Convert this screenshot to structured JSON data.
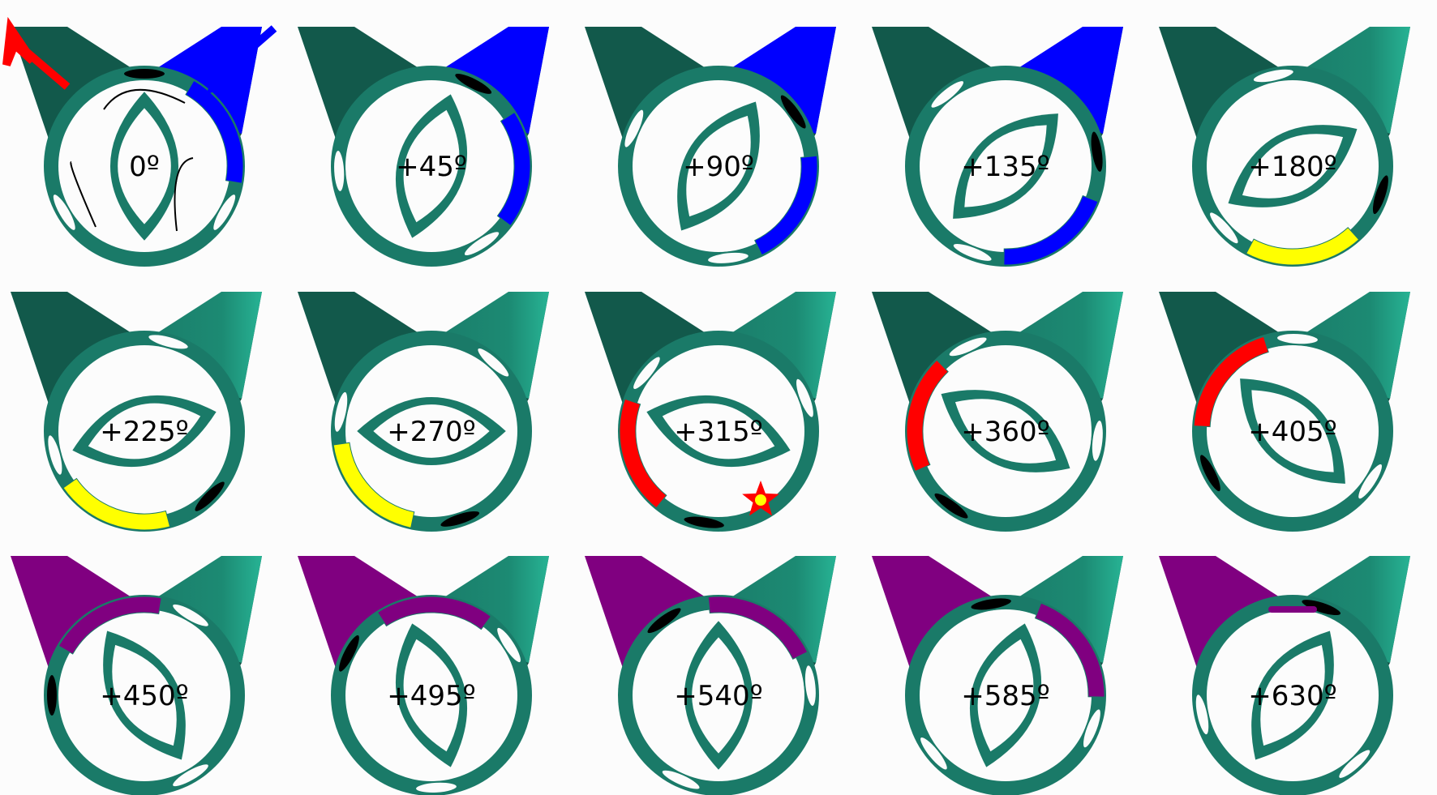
{
  "colors": {
    "housing": "#1a7a68",
    "housing_dark": "#12594b",
    "housing_light": "#27b394",
    "port": "#000000",
    "background": "#fcfcfc",
    "intake": "#0000ff",
    "compression": "#ffff00",
    "combustion": "#ff0000",
    "exhaust": "#800080",
    "spark": "#ffff00"
  },
  "indicators": {
    "exhaust_arrow_color": "#ff0000",
    "intake_arrow_color": "#0000ff",
    "rotation_arrows": "rotation-direction-arrows"
  },
  "steps": [
    {
      "label": "0º",
      "rotation_deg": 0,
      "highlight": "intake"
    },
    {
      "label": "+45º",
      "rotation_deg": 45,
      "highlight": "intake"
    },
    {
      "label": "+90º",
      "rotation_deg": 90,
      "highlight": "intake"
    },
    {
      "label": "+135º",
      "rotation_deg": 135,
      "highlight": "intake"
    },
    {
      "label": "+180º",
      "rotation_deg": 180,
      "highlight": "compression"
    },
    {
      "label": "+225º",
      "rotation_deg": 225,
      "highlight": "compression"
    },
    {
      "label": "+270º",
      "rotation_deg": 270,
      "highlight": "compression"
    },
    {
      "label": "+315º",
      "rotation_deg": 315,
      "highlight": "combustion"
    },
    {
      "label": "+360º",
      "rotation_deg": 360,
      "highlight": "combustion"
    },
    {
      "label": "+405º",
      "rotation_deg": 405,
      "highlight": "combustion"
    },
    {
      "label": "+450º",
      "rotation_deg": 450,
      "highlight": "exhaust"
    },
    {
      "label": "+495º",
      "rotation_deg": 495,
      "highlight": "exhaust"
    },
    {
      "label": "+540º",
      "rotation_deg": 540,
      "highlight": "exhaust"
    },
    {
      "label": "+585º",
      "rotation_deg": 585,
      "highlight": "exhaust"
    },
    {
      "label": "+630º",
      "rotation_deg": 630,
      "highlight": "exhaust"
    }
  ]
}
